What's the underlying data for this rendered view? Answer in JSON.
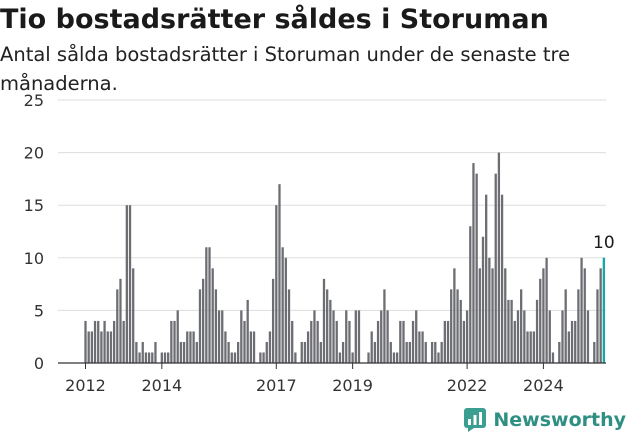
{
  "header": {
    "title": "Tio bostadsrätter såldes i Storuman",
    "subtitle": "Antal sålda bostadsrätter i Storuman under de senaste tre månaderna."
  },
  "brand": {
    "name": "Newsworthy",
    "icon": "newsworthy-logo-icon",
    "color": "#3a9e91"
  },
  "colors": {
    "bar": "#6d6e73",
    "highlight": "#12a8a6",
    "grid": "#dddddd"
  },
  "chart_data": {
    "type": "bar",
    "x_unit": "month",
    "start": "2012-01",
    "xticks": [
      "2012",
      "2014",
      "2017",
      "2019",
      "2022",
      "2024"
    ],
    "ylim": [
      0,
      25
    ],
    "yticks": [
      0,
      5,
      10,
      15,
      20,
      25
    ],
    "grid": true,
    "highlight_label": "10",
    "values": [
      4,
      3,
      3,
      4,
      4,
      3,
      4,
      3,
      3,
      4,
      7,
      8,
      4,
      15,
      15,
      9,
      2,
      1,
      2,
      1,
      1,
      1,
      2,
      0,
      1,
      1,
      1,
      4,
      4,
      5,
      2,
      2,
      3,
      3,
      3,
      2,
      7,
      8,
      11,
      11,
      9,
      7,
      5,
      5,
      3,
      2,
      1,
      1,
      2,
      5,
      4,
      6,
      3,
      3,
      0,
      1,
      1,
      2,
      3,
      8,
      15,
      17,
      11,
      10,
      7,
      4,
      1,
      0,
      2,
      2,
      3,
      4,
      5,
      4,
      2,
      8,
      7,
      6,
      5,
      4,
      1,
      2,
      5,
      4,
      1,
      5,
      5,
      0,
      0,
      1,
      3,
      2,
      4,
      5,
      7,
      5,
      2,
      1,
      1,
      4,
      4,
      2,
      2,
      4,
      5,
      3,
      3,
      2,
      0,
      2,
      2,
      1,
      2,
      4,
      4,
      7,
      9,
      7,
      6,
      4,
      5,
      13,
      19,
      18,
      9,
      12,
      16,
      10,
      9,
      18,
      20,
      16,
      9,
      6,
      6,
      4,
      5,
      7,
      5,
      3,
      3,
      3,
      6,
      8,
      9,
      10,
      5,
      1,
      0,
      2,
      5,
      7,
      3,
      4,
      4,
      7,
      10,
      9,
      5,
      0,
      2,
      7,
      9,
      10
    ]
  }
}
